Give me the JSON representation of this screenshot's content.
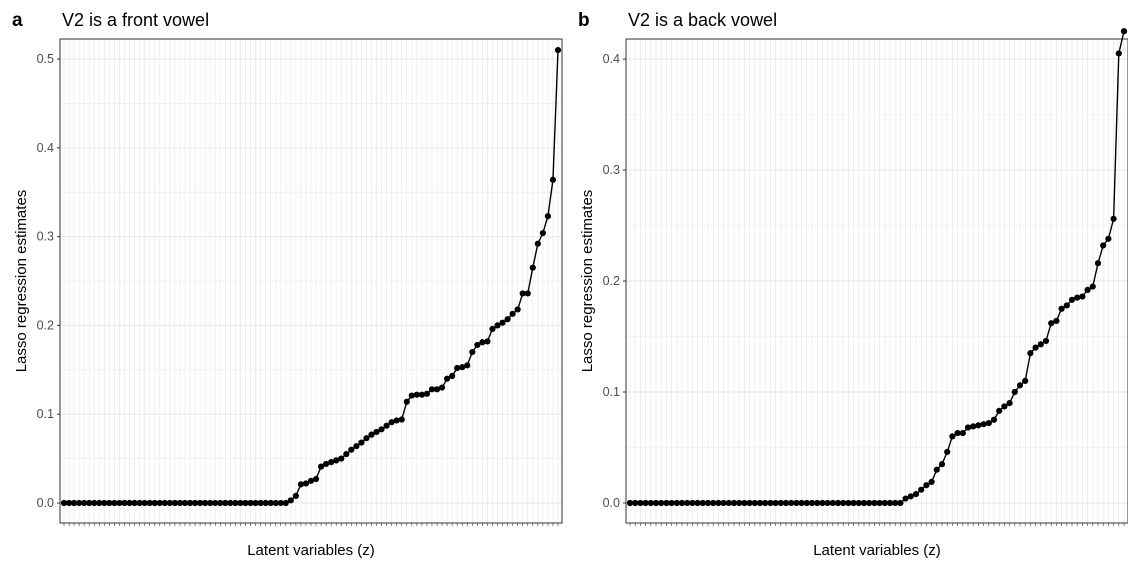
{
  "panels_style": {
    "point_color": "#000000",
    "line_color": "#000000",
    "grid_color": "#ebebeb",
    "border_color": "#333333"
  },
  "chart_data": [
    {
      "type": "line",
      "panel_label": "a",
      "title": "V2 is a front vowel",
      "xlabel": "Latent variables (z)",
      "ylabel": "Lasso regression estimates",
      "ylim": [
        0,
        0.5
      ],
      "y_ticks": [
        0.0,
        0.1,
        0.2,
        0.3,
        0.4,
        0.5
      ],
      "y_tick_labels": [
        "0.0",
        "0.1",
        "0.2",
        "0.3",
        "0.4",
        "0.5"
      ],
      "grid": true,
      "n_points": 100,
      "values": [
        0,
        0,
        0,
        0,
        0,
        0,
        0,
        0,
        0,
        0,
        0,
        0,
        0,
        0,
        0,
        0,
        0,
        0,
        0,
        0,
        0,
        0,
        0,
        0,
        0,
        0,
        0,
        0,
        0,
        0,
        0,
        0,
        0,
        0,
        0,
        0,
        0,
        0,
        0,
        0,
        0,
        0,
        0,
        0,
        0,
        0.003,
        0.008,
        0.021,
        0.022,
        0.025,
        0.027,
        0.041,
        0.044,
        0.046,
        0.048,
        0.05,
        0.055,
        0.06,
        0.064,
        0.068,
        0.073,
        0.077,
        0.08,
        0.083,
        0.087,
        0.091,
        0.093,
        0.094,
        0.114,
        0.121,
        0.122,
        0.122,
        0.123,
        0.128,
        0.128,
        0.13,
        0.14,
        0.143,
        0.152,
        0.153,
        0.155,
        0.17,
        0.178,
        0.181,
        0.182,
        0.196,
        0.2,
        0.203,
        0.207,
        0.213,
        0.218,
        0.236,
        0.236,
        0.265,
        0.292,
        0.304,
        0.323,
        0.364,
        0.51
      ]
    },
    {
      "type": "line",
      "panel_label": "b",
      "title": "V2 is a back vowel",
      "xlabel": "Latent variables (z)",
      "ylabel": "Lasso regression estimates",
      "ylim": [
        0,
        0.4
      ],
      "y_ticks": [
        0.0,
        0.1,
        0.2,
        0.3,
        0.4
      ],
      "y_tick_labels": [
        "0.0",
        "0.1",
        "0.2",
        "0.3",
        "0.4"
      ],
      "grid": true,
      "n_points": 100,
      "values": [
        0,
        0,
        0,
        0,
        0,
        0,
        0,
        0,
        0,
        0,
        0,
        0,
        0,
        0,
        0,
        0,
        0,
        0,
        0,
        0,
        0,
        0,
        0,
        0,
        0,
        0,
        0,
        0,
        0,
        0,
        0,
        0,
        0,
        0,
        0,
        0,
        0,
        0,
        0,
        0,
        0,
        0,
        0,
        0,
        0,
        0,
        0,
        0,
        0,
        0,
        0,
        0,
        0,
        0.004,
        0.006,
        0.008,
        0.012,
        0.016,
        0.019,
        0.03,
        0.035,
        0.046,
        0.06,
        0.063,
        0.063,
        0.068,
        0.069,
        0.07,
        0.071,
        0.072,
        0.075,
        0.083,
        0.087,
        0.09,
        0.1,
        0.106,
        0.11,
        0.135,
        0.14,
        0.143,
        0.146,
        0.162,
        0.164,
        0.175,
        0.178,
        0.183,
        0.185,
        0.186,
        0.192,
        0.195,
        0.216,
        0.232,
        0.238,
        0.256,
        0.405,
        0.425
      ]
    }
  ]
}
